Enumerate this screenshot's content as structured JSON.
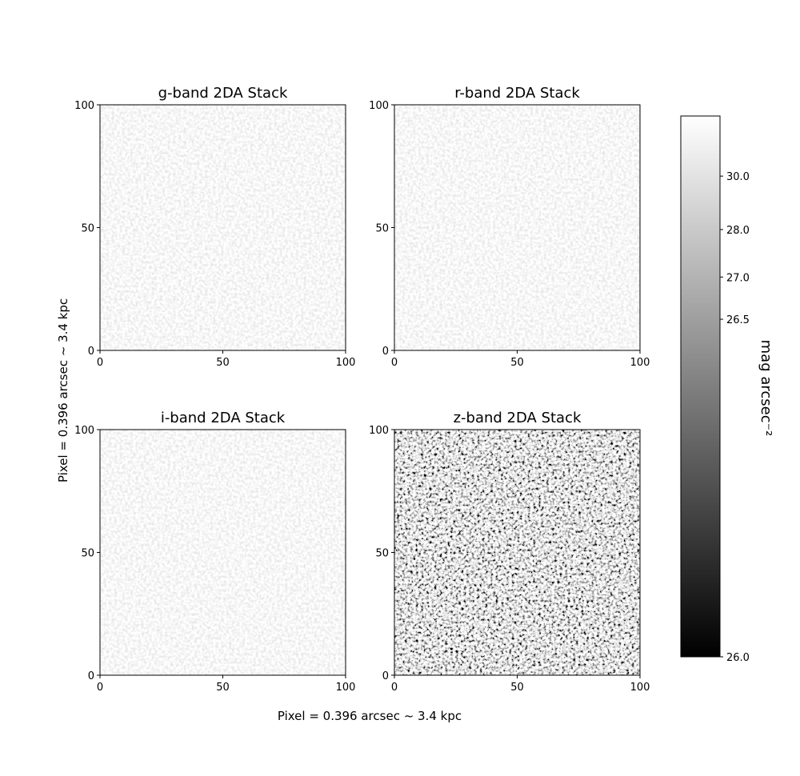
{
  "chart_data": {
    "type": "heatmap-grid",
    "xlabel": "Pixel = 0.396 arcsec ~ 3.4 kpc",
    "ylabel": "Pixel = 0.396 arcsec ~ 3.4 kpc",
    "panels": [
      {
        "title": "g-band 2DA Stack",
        "xlim": [
          0,
          100
        ],
        "ylim": [
          0,
          100
        ],
        "xticks": [
          0,
          50,
          100
        ],
        "yticks": [
          0,
          50,
          100
        ]
      },
      {
        "title": "r-band 2DA Stack",
        "xlim": [
          0,
          100
        ],
        "ylim": [
          0,
          100
        ],
        "xticks": [
          0,
          50,
          100
        ],
        "yticks": [
          0,
          50,
          100
        ]
      },
      {
        "title": "i-band 2DA Stack",
        "xlim": [
          0,
          100
        ],
        "ylim": [
          0,
          100
        ],
        "xticks": [
          0,
          50,
          100
        ],
        "yticks": [
          0,
          50,
          100
        ]
      },
      {
        "title": "z-band 2DA Stack",
        "xlim": [
          0,
          100
        ],
        "ylim": [
          0,
          100
        ],
        "xticks": [
          0,
          50,
          100
        ],
        "yticks": [
          0,
          50,
          100
        ]
      }
    ],
    "colorbar": {
      "label": "mag arcsec⁻²",
      "clim": [
        26,
        34
      ],
      "gamma": 0.17,
      "colormap": "gray",
      "ticks": [
        {
          "value": 26,
          "label": "26.0"
        },
        {
          "value": 26.5,
          "label": "26.5"
        },
        {
          "value": 27,
          "label": "27.0"
        },
        {
          "value": 28,
          "label": "28.0"
        },
        {
          "value": 30,
          "label": "30.0"
        }
      ]
    }
  }
}
